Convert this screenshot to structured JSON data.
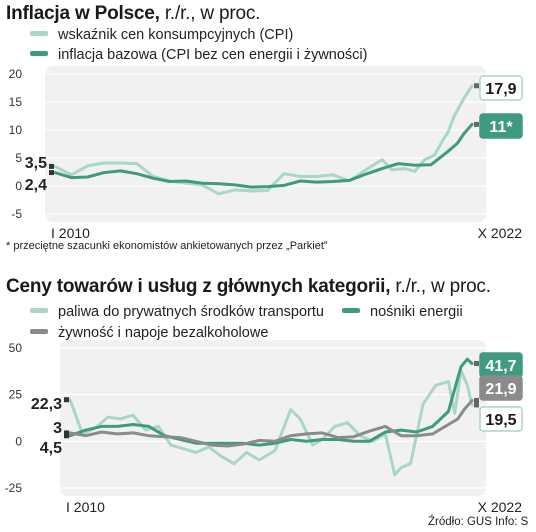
{
  "chart_data": [
    {
      "type": "line",
      "title": "Inflacja w Polsce,",
      "subtitle": "r./r., w proc.",
      "xlabel": "",
      "ylabel": "",
      "ylim": [
        -5,
        20
      ],
      "yticks": [
        "20",
        "15",
        "10",
        "5",
        "0",
        "-5"
      ],
      "x_start_label": "I 2010",
      "x_end_label": "X 2022",
      "x_range": [
        "2010-01",
        "2022-10"
      ],
      "grid": true,
      "series": [
        {
          "name": "wskaźnik cen konsumpcyjnych (CPI)",
          "color": "#a9d6c9",
          "start_label": "3,5",
          "end_label": "17,9",
          "x": [
            2010.0,
            2010.5,
            2011.0,
            2011.5,
            2012.0,
            2012.5,
            2013.0,
            2013.5,
            2014.0,
            2014.5,
            2015.0,
            2015.5,
            2016.0,
            2016.5,
            2017.0,
            2017.5,
            2018.0,
            2018.5,
            2019.0,
            2019.5,
            2020.0,
            2020.3,
            2020.7,
            2021.0,
            2021.3,
            2021.6,
            2021.9,
            2022.0,
            2022.2,
            2022.5,
            2022.75
          ],
          "values": [
            3.5,
            2.0,
            3.6,
            4.1,
            4.1,
            4.0,
            1.7,
            0.9,
            0.5,
            0.2,
            -1.4,
            -0.7,
            -0.9,
            -0.8,
            2.2,
            1.7,
            1.7,
            2.0,
            0.9,
            2.9,
            4.7,
            2.9,
            3.1,
            2.6,
            4.7,
            5.5,
            8.6,
            9.4,
            12.4,
            15.6,
            17.9
          ]
        },
        {
          "name": "inflacja bazowa (CPI bez cen energii i żywności)",
          "color": "#3f9a82",
          "start_label": "2,4",
          "end_label": "11*",
          "x": [
            2010.0,
            2010.5,
            2011.0,
            2011.5,
            2012.0,
            2012.5,
            2013.0,
            2013.5,
            2014.0,
            2014.5,
            2015.0,
            2015.5,
            2016.0,
            2016.5,
            2017.0,
            2017.5,
            2018.0,
            2018.5,
            2019.0,
            2019.5,
            2020.0,
            2020.5,
            2021.0,
            2021.5,
            2022.0,
            2022.3,
            2022.5,
            2022.75
          ],
          "values": [
            2.4,
            1.5,
            1.6,
            2.4,
            2.7,
            2.2,
            1.4,
            0.8,
            0.9,
            0.5,
            0.4,
            0.2,
            -0.2,
            -0.1,
            0.1,
            0.9,
            0.7,
            0.8,
            1.0,
            2.1,
            3.1,
            4.0,
            3.7,
            3.8,
            6.1,
            7.6,
            9.3,
            11.0
          ]
        }
      ],
      "footnote": "* przeciętne szacunki ekonomistów ankietowanych przez „Parkiet”"
    },
    {
      "type": "line",
      "title": "Ceny towarów i usług z głównych kategorii,",
      "subtitle": "r./r., w proc.",
      "xlabel": "",
      "ylabel": "",
      "ylim": [
        -25,
        50
      ],
      "yticks": [
        "50",
        "25",
        "0",
        "-25"
      ],
      "x_start_label": "I 2010",
      "x_end_label": "X 2022",
      "x_range": [
        "2010-01",
        "2022-10"
      ],
      "grid": true,
      "series": [
        {
          "name": "paliwa do prywatnych środków transportu",
          "color": "#a9d6c9",
          "start_label": "22,3",
          "end_label": "19,5",
          "x": [
            2010.0,
            2010.4,
            2010.8,
            2011.2,
            2011.6,
            2012.0,
            2012.4,
            2012.8,
            2013.2,
            2013.6,
            2014.0,
            2014.4,
            2014.8,
            2015.2,
            2015.6,
            2016.0,
            2016.5,
            2017.0,
            2017.3,
            2017.7,
            2018.0,
            2018.4,
            2018.8,
            2019.2,
            2019.6,
            2020.0,
            2020.3,
            2020.5,
            2020.8,
            2021.2,
            2021.6,
            2022.0,
            2022.2,
            2022.4,
            2022.6,
            2022.75
          ],
          "values": [
            22.3,
            4.0,
            7.0,
            13.0,
            12.0,
            14.0,
            6.0,
            8.0,
            -2.0,
            -4.0,
            -6.0,
            -3.0,
            -8.0,
            -12.0,
            -6.0,
            -10.0,
            -5.0,
            17.0,
            12.0,
            -2.0,
            1.0,
            8.0,
            10.0,
            3.0,
            0.0,
            4.0,
            -18.0,
            -14.0,
            -12.0,
            20.0,
            30.0,
            32.0,
            15.0,
            38.0,
            30.0,
            19.5
          ]
        },
        {
          "name": "nośniki energii",
          "color": "#3f9a82",
          "start_label": "3",
          "end_label": "41,7",
          "x": [
            2010.0,
            2010.5,
            2011.0,
            2011.5,
            2012.0,
            2012.5,
            2013.0,
            2013.5,
            2014.0,
            2014.5,
            2015.0,
            2015.5,
            2016.0,
            2016.5,
            2017.0,
            2017.5,
            2018.0,
            2018.5,
            2019.0,
            2019.5,
            2020.0,
            2020.5,
            2021.0,
            2021.5,
            2022.0,
            2022.2,
            2022.4,
            2022.6,
            2022.75
          ],
          "values": [
            3.0,
            6.0,
            8.0,
            8.0,
            9.0,
            8.0,
            3.0,
            1.0,
            -1.0,
            -1.0,
            -1.0,
            -1.0,
            -2.0,
            -1.0,
            1.0,
            0.0,
            1.0,
            1.0,
            0.0,
            0.0,
            5.0,
            6.0,
            5.0,
            8.0,
            16.0,
            28.0,
            40.0,
            44.0,
            41.7
          ]
        },
        {
          "name": "żywność i napoje bezalkoholowe",
          "color": "#8b8b8b",
          "start_label": "4,5",
          "end_label": "21,9",
          "x": [
            2010.0,
            2010.5,
            2011.0,
            2011.5,
            2012.0,
            2012.5,
            2013.0,
            2013.5,
            2014.0,
            2014.5,
            2015.0,
            2015.5,
            2016.0,
            2016.5,
            2017.0,
            2017.5,
            2018.0,
            2018.5,
            2019.0,
            2019.5,
            2020.0,
            2020.5,
            2021.0,
            2021.5,
            2022.0,
            2022.3,
            2022.5,
            2022.75
          ],
          "values": [
            4.5,
            3.0,
            5.0,
            4.0,
            4.5,
            3.0,
            2.5,
            2.0,
            0.0,
            -2.0,
            -2.5,
            -1.5,
            0.5,
            0.0,
            3.0,
            4.0,
            4.5,
            2.0,
            2.5,
            5.5,
            8.0,
            3.0,
            3.0,
            4.0,
            9.0,
            12.0,
            17.0,
            21.9
          ]
        }
      ]
    }
  ],
  "source": "Źródło: GUS  Info: S"
}
